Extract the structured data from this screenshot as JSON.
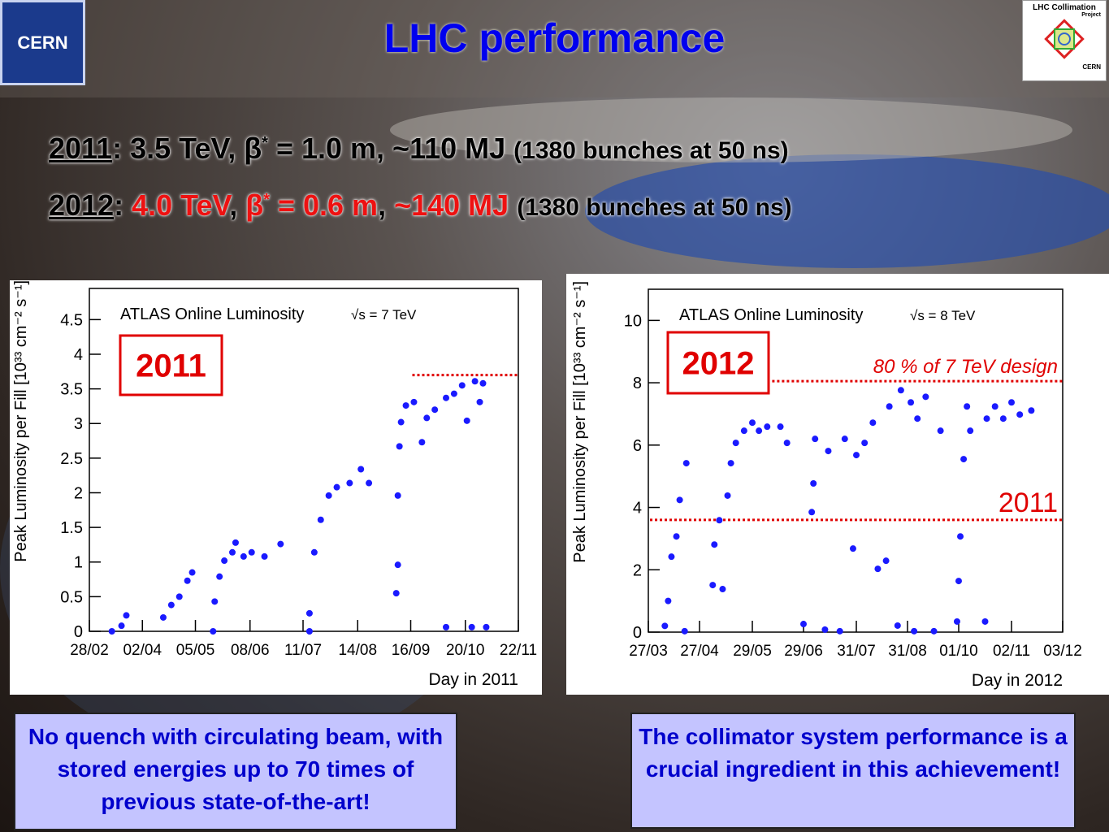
{
  "slide": {
    "title": "LHC performance",
    "line1": [
      "2011",
      ": 3.5 TeV, β",
      "*",
      " = 1.0 m, ~110 MJ ",
      "(1380 bunches at 50 ns)"
    ],
    "line2": [
      "2012",
      ": ",
      "4.0 TeV",
      ", ",
      "β",
      "*",
      " = 0.6 m",
      ", ",
      "~140 MJ ",
      "(1380 bunches at 50 ns)"
    ],
    "logo_left": "CERN",
    "logo_right": [
      "LHC Collimation",
      "Project",
      "CERN"
    ],
    "box_left": "No quench with circulating beam, with stored energies up to 70 times of previous state-of-the-art!",
    "box_right": "The collimator system performance is a crucial ingredient in this achievement!"
  },
  "chart_data": [
    {
      "type": "scatter",
      "title": "ATLAS Online Luminosity",
      "energy": "√s = 7 TeV",
      "badge": "2011",
      "x_label": "Day in 2011",
      "y_label": "Peak Luminosity per Fill [10³³ cm⁻² s⁻¹]",
      "color": "#1a1aff",
      "x": [
        73,
        79,
        82,
        105,
        110,
        115,
        120,
        123,
        136,
        137,
        140,
        143,
        148,
        150,
        155,
        160,
        168,
        178,
        196,
        196,
        199,
        203,
        208,
        213,
        221,
        228,
        233,
        250,
        251,
        251,
        252,
        253,
        256,
        261,
        266,
        269,
        274,
        281,
        281,
        286,
        291,
        294,
        297,
        299,
        302,
        304,
        306
      ],
      "values": [
        0,
        0.08,
        0.23,
        0.2,
        0.38,
        0.5,
        0.73,
        0.85,
        0,
        0.43,
        0.79,
        1.02,
        1.14,
        1.28,
        1.08,
        1.14,
        1.08,
        1.26,
        0,
        0.26,
        1.14,
        1.61,
        1.96,
        2.08,
        2.14,
        2.34,
        2.14,
        0.55,
        0.96,
        1.96,
        2.67,
        3.02,
        3.26,
        3.31,
        2.73,
        3.08,
        3.2,
        0.06,
        3.37,
        3.43,
        3.55,
        3.04,
        0.06,
        3.61,
        3.31,
        3.58,
        0.06
      ],
      "xlim": [
        59,
        326
      ],
      "ylim": [
        0,
        4.95
      ],
      "xticks": [
        {
          "value": 59,
          "label": "28/02"
        },
        {
          "value": 92,
          "label": "02/04"
        },
        {
          "value": 125,
          "label": "05/05"
        },
        {
          "value": 159,
          "label": "08/06"
        },
        {
          "value": 192,
          "label": "11/07"
        },
        {
          "value": 226,
          "label": "14/08"
        },
        {
          "value": 259,
          "label": "16/09"
        },
        {
          "value": 293,
          "label": "20/10"
        },
        {
          "value": 326,
          "label": "22/11"
        }
      ],
      "yticks": [
        0,
        0.5,
        1,
        1.5,
        2,
        2.5,
        3,
        3.5,
        4,
        4.5
      ],
      "reference_lines": [
        {
          "y": 3.7,
          "x": [
            260,
            326
          ],
          "color": "#e00000"
        }
      ]
    },
    {
      "type": "scatter",
      "title": "ATLAS Online Luminosity",
      "energy": "√s = 8 TeV",
      "badge": "2012",
      "x_label": "Day in 2012",
      "y_label": "Peak Luminosity per Fill [10³³ cm⁻² s⁻¹]",
      "color": "#1a1aff",
      "x": [
        97,
        99,
        101,
        104,
        106,
        109,
        110,
        126,
        127,
        130,
        132,
        135,
        137,
        140,
        145,
        150,
        154,
        159,
        167,
        171,
        181,
        186,
        187,
        188,
        194,
        196,
        203,
        206,
        211,
        213,
        218,
        223,
        226,
        231,
        233,
        238,
        240,
        246,
        248,
        250,
        255,
        260,
        264,
        274,
        275,
        276,
        278,
        280,
        282,
        291,
        292,
        297,
        302,
        307,
        312,
        319
      ],
      "values": [
        0.2,
        1.0,
        2.42,
        3.07,
        4.24,
        0.03,
        5.42,
        1.51,
        2.81,
        3.59,
        1.38,
        4.38,
        5.42,
        6.07,
        6.46,
        6.72,
        6.46,
        6.59,
        6.59,
        6.07,
        0.26,
        3.85,
        4.77,
        6.2,
        0.08,
        5.81,
        0.03,
        6.2,
        2.68,
        5.68,
        6.07,
        6.72,
        2.03,
        2.29,
        7.24,
        0.21,
        7.76,
        7.37,
        0.03,
        6.85,
        7.55,
        0.03,
        6.46,
        0.34,
        1.64,
        3.07,
        5.55,
        7.24,
        6.46,
        0.34,
        6.85,
        7.24,
        6.85,
        7.37,
        6.98,
        7.11
      ],
      "xlim": [
        87,
        338
      ],
      "ylim": [
        0,
        11
      ],
      "xticks": [
        {
          "value": 87,
          "label": "27/03"
        },
        {
          "value": 118,
          "label": "27/04"
        },
        {
          "value": 150,
          "label": "29/05"
        },
        {
          "value": 181,
          "label": "29/06"
        },
        {
          "value": 213,
          "label": "31/07"
        },
        {
          "value": 244,
          "label": "31/08"
        },
        {
          "value": 275,
          "label": "01/10"
        },
        {
          "value": 307,
          "label": "02/11"
        },
        {
          "value": 338,
          "label": "03/12"
        }
      ],
      "yticks": [
        0,
        2,
        4,
        6,
        8,
        10
      ],
      "reference_lines": [
        {
          "y": 8.05,
          "x": [
            162,
            338
          ],
          "color": "#e00000",
          "label": "80 % of 7 TeV design"
        },
        {
          "y": 3.6,
          "x": [
            88,
            338
          ],
          "color": "#e00000",
          "label": "2011"
        }
      ]
    }
  ]
}
